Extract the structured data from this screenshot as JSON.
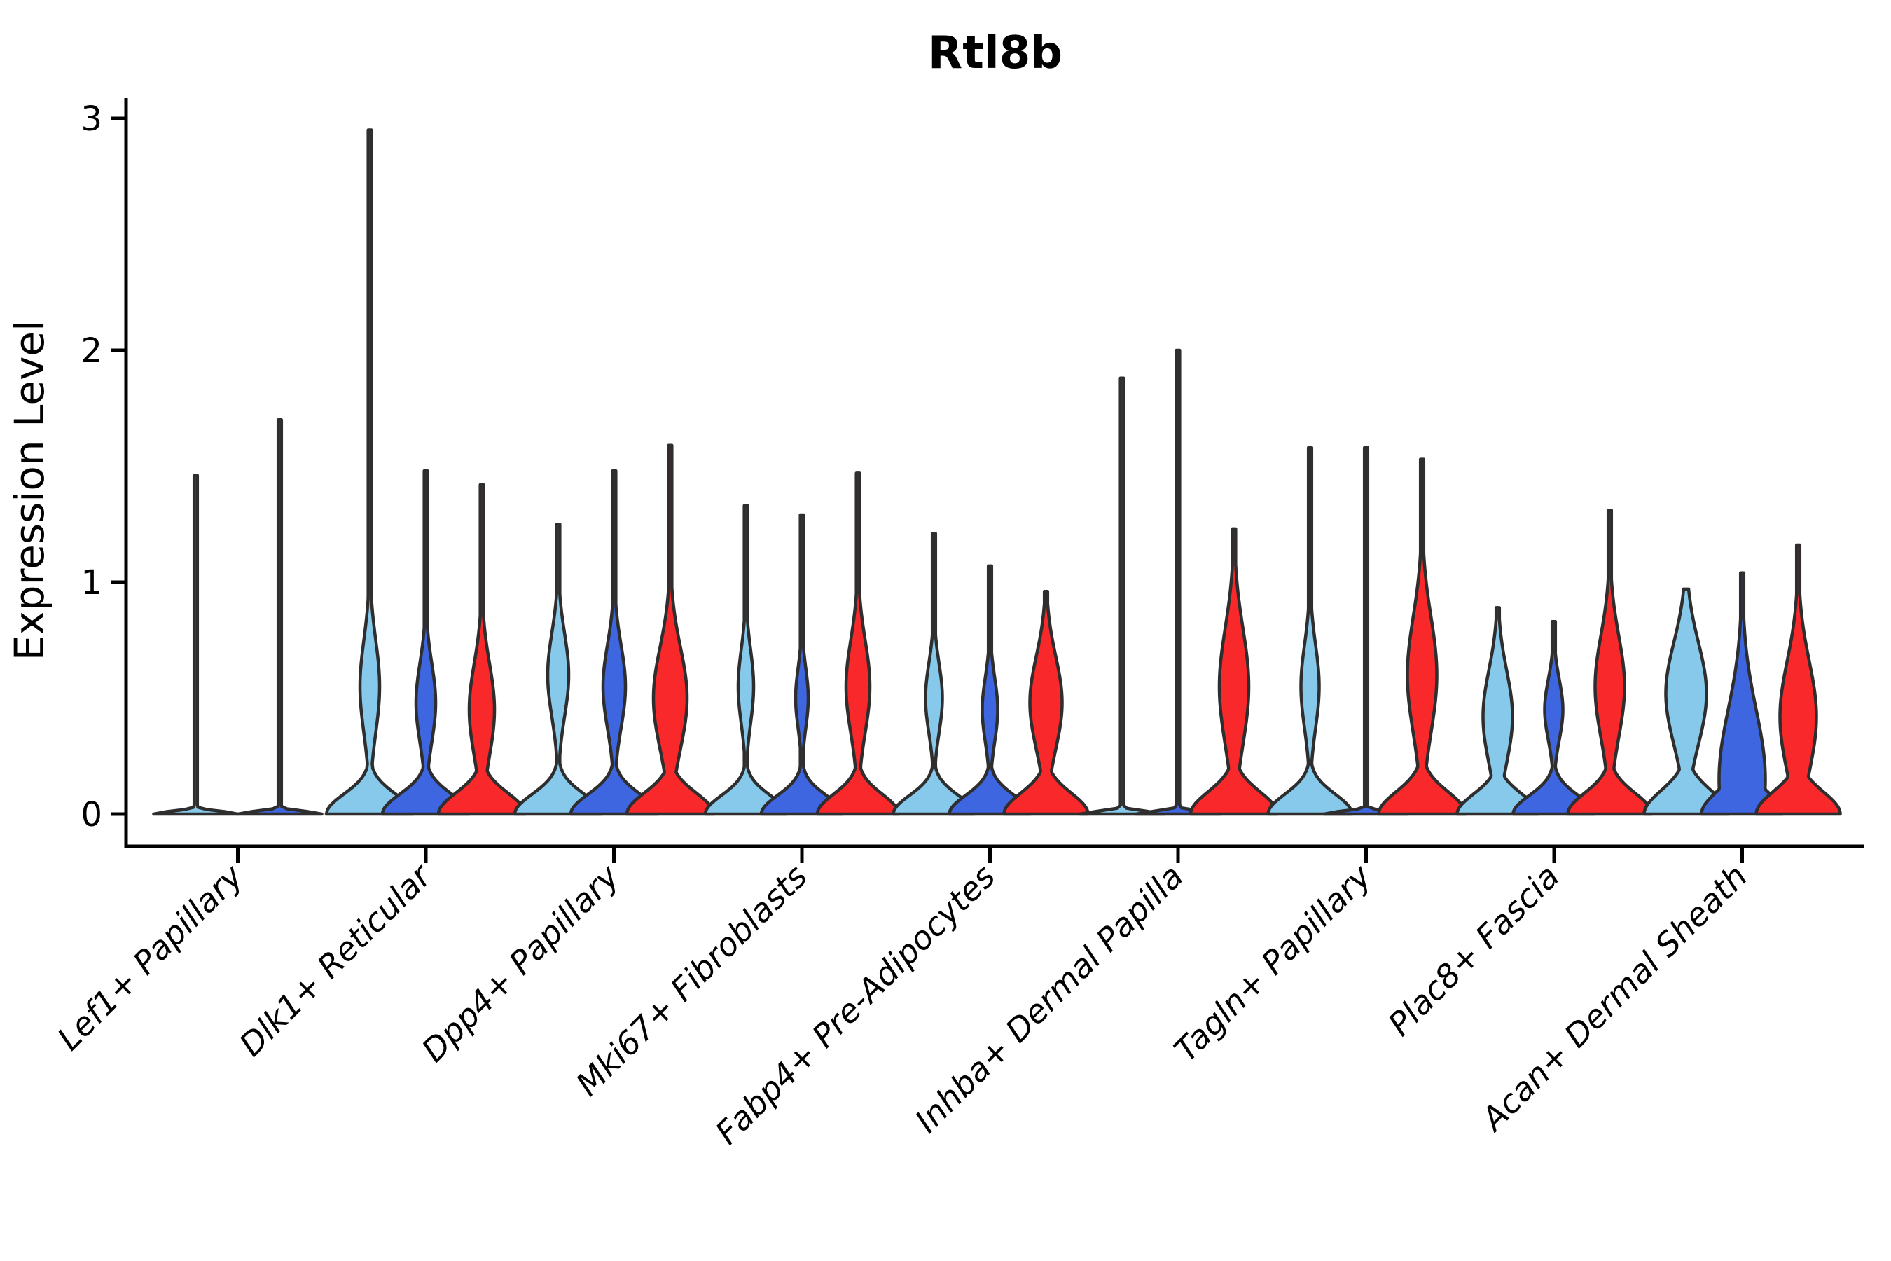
{
  "title": "Rtl8b",
  "y_axis": {
    "label": "Expression Level",
    "tick_labels": [
      "0",
      "1",
      "2",
      "3"
    ]
  },
  "colors": {
    "split_light_blue": "#87C9EA",
    "split_dark_blue": "#3E66E0",
    "split_red": "#F8282B",
    "violin_outline": "#2E2E2E",
    "axis": "#000000",
    "background": "#FFFFFF"
  },
  "chart_data": {
    "type": "violin",
    "title": "Rtl8b",
    "xlabel": "",
    "ylabel": "Expression Level",
    "ylim": [
      0,
      3.05
    ],
    "yticks": [
      0,
      1,
      2,
      3
    ],
    "grid": false,
    "legend": "none",
    "x_label_rotation_deg": 45,
    "categories": [
      "Lef1+ Papillary",
      "Dlk1+ Reticular",
      "Dpp4+ Papillary",
      "Mki67+ Fibroblasts",
      "Fabp4+ Pre-Adipocytes",
      "Inhba+ Dermal Papilla",
      "Tagln+ Papillary",
      "Plac8+ Fascia",
      "Acan+ Dermal Sheath"
    ],
    "series": [
      {
        "name": "split-1",
        "color": "#87C9EA"
      },
      {
        "name": "split-2",
        "color": "#3E66E0"
      },
      {
        "name": "split-3",
        "color": "#F8282B"
      }
    ],
    "violins": [
      {
        "cat": 0,
        "split": 0,
        "x": 279.5,
        "max": 1.46,
        "bulge": null,
        "base": {
          "hw": 60,
          "sigma": 0.012
        }
      },
      {
        "cat": 0,
        "split": 1,
        "x": 399.5,
        "max": 1.7,
        "bulge": null,
        "base": {
          "hw": 60,
          "sigma": 0.012
        }
      },
      {
        "cat": 1,
        "split": 0,
        "x": 528,
        "max": 2.95,
        "bulge": {
          "peak": 0.55,
          "sigma": 0.2,
          "hw": 14
        },
        "base": {
          "hw": 62,
          "sigma": 0.085
        }
      },
      {
        "cat": 1,
        "split": 1,
        "x": 608,
        "max": 1.48,
        "bulge": {
          "peak": 0.48,
          "sigma": 0.17,
          "hw": 14
        },
        "base": {
          "hw": 62,
          "sigma": 0.085
        }
      },
      {
        "cat": 1,
        "split": 2,
        "x": 688,
        "max": 1.42,
        "bulge": {
          "peak": 0.45,
          "sigma": 0.2,
          "hw": 18
        },
        "base": {
          "hw": 62,
          "sigma": 0.09
        }
      },
      {
        "cat": 2,
        "split": 0,
        "x": 797,
        "max": 1.25,
        "bulge": {
          "peak": 0.6,
          "sigma": 0.18,
          "hw": 15
        },
        "base": {
          "hw": 62,
          "sigma": 0.085
        }
      },
      {
        "cat": 2,
        "split": 1,
        "x": 877,
        "max": 1.48,
        "bulge": {
          "peak": 0.55,
          "sigma": 0.18,
          "hw": 16
        },
        "base": {
          "hw": 62,
          "sigma": 0.085
        }
      },
      {
        "cat": 2,
        "split": 2,
        "x": 957,
        "max": 1.59,
        "bulge": {
          "peak": 0.5,
          "sigma": 0.22,
          "hw": 24
        },
        "base": {
          "hw": 62,
          "sigma": 0.09
        }
      },
      {
        "cat": 3,
        "split": 0,
        "x": 1065,
        "max": 1.33,
        "bulge": {
          "peak": 0.55,
          "sigma": 0.16,
          "hw": 11
        },
        "base": {
          "hw": 58,
          "sigma": 0.08
        }
      },
      {
        "cat": 3,
        "split": 1,
        "x": 1145,
        "max": 1.29,
        "bulge": {
          "peak": 0.5,
          "sigma": 0.13,
          "hw": 9
        },
        "base": {
          "hw": 58,
          "sigma": 0.08
        }
      },
      {
        "cat": 3,
        "split": 2,
        "x": 1225,
        "max": 1.47,
        "bulge": {
          "peak": 0.55,
          "sigma": 0.2,
          "hw": 17
        },
        "base": {
          "hw": 58,
          "sigma": 0.085
        }
      },
      {
        "cat": 4,
        "split": 0,
        "x": 1333.5,
        "max": 1.21,
        "bulge": {
          "peak": 0.5,
          "sigma": 0.15,
          "hw": 12
        },
        "base": {
          "hw": 58,
          "sigma": 0.08
        }
      },
      {
        "cat": 4,
        "split": 1,
        "x": 1413.5,
        "max": 1.07,
        "bulge": {
          "peak": 0.45,
          "sigma": 0.14,
          "hw": 11
        },
        "base": {
          "hw": 58,
          "sigma": 0.08
        }
      },
      {
        "cat": 4,
        "split": 2,
        "x": 1493.5,
        "max": 0.96,
        "bulge": {
          "peak": 0.48,
          "sigma": 0.2,
          "hw": 23
        },
        "base": {
          "hw": 60,
          "sigma": 0.09
        }
      },
      {
        "cat": 5,
        "split": 0,
        "x": 1602,
        "max": 1.88,
        "bulge": null,
        "base": {
          "hw": 60,
          "sigma": 0.012
        }
      },
      {
        "cat": 5,
        "split": 1,
        "x": 1682,
        "max": 2.0,
        "bulge": null,
        "base": {
          "hw": 60,
          "sigma": 0.012
        }
      },
      {
        "cat": 5,
        "split": 2,
        "x": 1762,
        "max": 1.23,
        "bulge": {
          "peak": 0.55,
          "sigma": 0.25,
          "hw": 21
        },
        "base": {
          "hw": 62,
          "sigma": 0.095
        }
      },
      {
        "cat": 6,
        "split": 0,
        "x": 1870.5,
        "max": 1.58,
        "bulge": {
          "peak": 0.55,
          "sigma": 0.18,
          "hw": 13
        },
        "base": {
          "hw": 60,
          "sigma": 0.085
        }
      },
      {
        "cat": 6,
        "split": 1,
        "x": 1950.5,
        "max": 1.58,
        "bulge": null,
        "base": {
          "hw": 60,
          "sigma": 0.012
        }
      },
      {
        "cat": 6,
        "split": 2,
        "x": 2030.5,
        "max": 1.53,
        "bulge": {
          "peak": 0.6,
          "sigma": 0.25,
          "hw": 21
        },
        "base": {
          "hw": 62,
          "sigma": 0.095
        }
      },
      {
        "cat": 7,
        "split": 0,
        "x": 2138.5,
        "max": 0.89,
        "bulge": {
          "peak": 0.42,
          "sigma": 0.2,
          "hw": 21
        },
        "base": {
          "hw": 58,
          "sigma": 0.085
        }
      },
      {
        "cat": 7,
        "split": 1,
        "x": 2218.5,
        "max": 0.83,
        "bulge": {
          "peak": 0.45,
          "sigma": 0.13,
          "hw": 13
        },
        "base": {
          "hw": 58,
          "sigma": 0.08
        }
      },
      {
        "cat": 7,
        "split": 2,
        "x": 2298.5,
        "max": 1.31,
        "bulge": {
          "peak": 0.55,
          "sigma": 0.22,
          "hw": 21
        },
        "base": {
          "hw": 60,
          "sigma": 0.09
        }
      },
      {
        "cat": 8,
        "split": 0,
        "x": 2407.5,
        "max": 0.97,
        "bulge": {
          "peak": 0.52,
          "sigma": 0.22,
          "hw": 29
        },
        "base": {
          "hw": 60,
          "sigma": 0.1
        }
      },
      {
        "cat": 8,
        "split": 1,
        "x": 2487.5,
        "max": 1.04,
        "bulge": {
          "peak": 0.15,
          "sigma": 0.3,
          "hw": 33
        },
        "base": {
          "hw": 58,
          "sigma": 0.1
        }
      },
      {
        "cat": 8,
        "split": 2,
        "x": 2567.5,
        "max": 1.16,
        "bulge": {
          "peak": 0.42,
          "sigma": 0.24,
          "hw": 26
        },
        "base": {
          "hw": 60,
          "sigma": 0.095
        }
      }
    ]
  }
}
